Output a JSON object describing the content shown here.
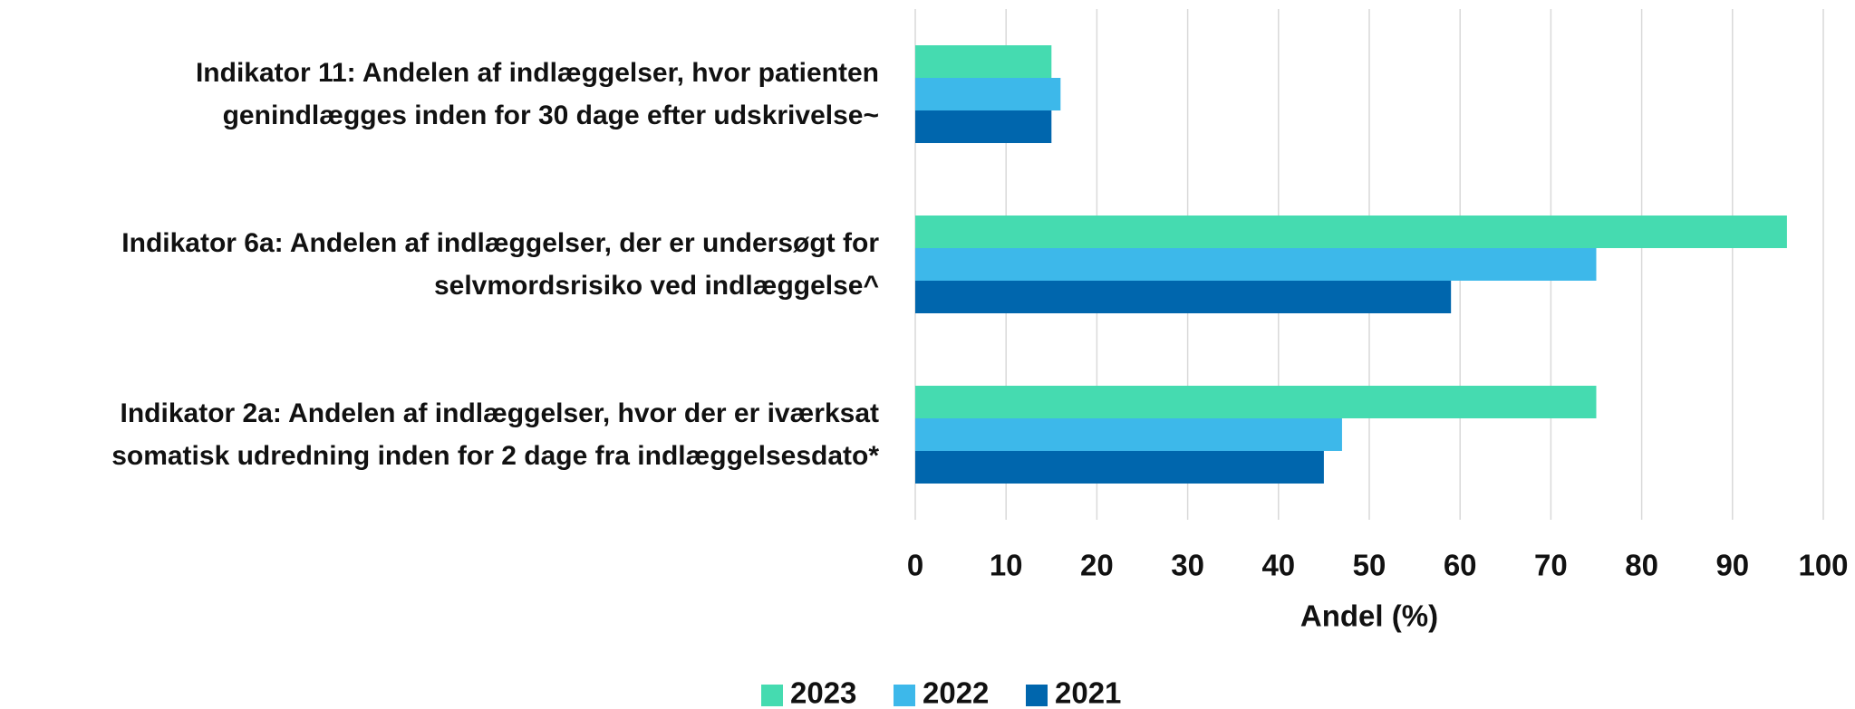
{
  "chart_data": {
    "type": "barh",
    "categories": [
      "Indikator 11: Andelen af indlæggelser, hvor patienten genindlægges inden for 30 dage efter udskrivelse~",
      "Indikator 6a: Andelen af indlæggelser, der er undersøgt for selvmordsrisiko ved indlæggelse^",
      "Indikator 2a: Andelen af indlæggelser, hvor der er iværksat somatisk udredning inden for 2 dage fra indlæggelsesdato*"
    ],
    "series": [
      {
        "name": "2023",
        "color": "#45dbb0",
        "values": [
          15,
          96,
          75
        ]
      },
      {
        "name": "2022",
        "color": "#3db8ea",
        "values": [
          16,
          75,
          47
        ]
      },
      {
        "name": "2021",
        "color": "#0066ad",
        "values": [
          15,
          59,
          45
        ]
      }
    ],
    "xlabel": "Andel (%)",
    "xlim": [
      0,
      100
    ],
    "xticks": [
      0,
      10,
      20,
      30,
      40,
      50,
      60,
      70,
      80,
      90,
      100
    ],
    "grid": true,
    "legend": "bottom"
  }
}
